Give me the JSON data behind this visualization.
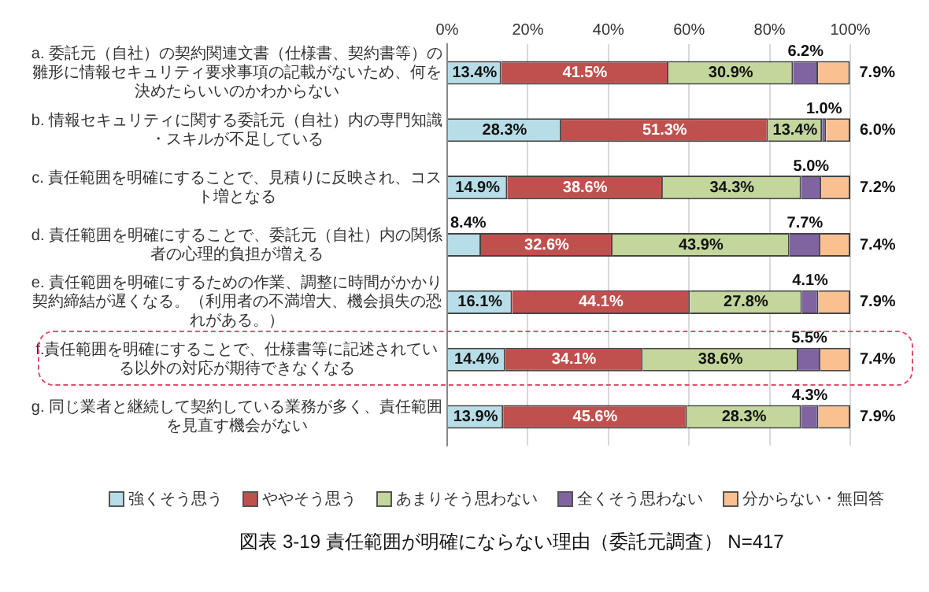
{
  "chart_data": {
    "type": "bar",
    "orientation": "horizontal",
    "stacked": true,
    "title": "図表 3-19 責任範囲が明確にならない理由（委託元調査） N=417",
    "categories": [
      "a. 委託元（自社）の契約関連文書（仕様書、契約書等）の雛形に情報セキュリティ要求事項の記載がないため、何を決めたらいいのかわからない",
      "b. 情報セキュリティに関する委託元（自社）内の専門知識・スキルが不足している",
      "c. 責任範囲を明確にすることで、見積りに反映され、コスト増となる",
      "d. 責任範囲を明確にすることで、委託元（自社）内の関係者の心理的負担が増える",
      "e. 責任範囲を明確にするための作業、調整に時間がかかり契約締結が遅くなる。（利用者の不満増大、機会損失の恐れがある。）",
      "f.責任範囲を明確にすることで、仕様書等に記述されている以外の対応が期待できなくなる",
      "g. 同じ業者と継続して契約している業務が多く、責任範囲を見直す機会がない"
    ],
    "series": [
      {
        "name": "強くそう思う",
        "color": "#b7dee8",
        "values": [
          13.4,
          28.3,
          14.9,
          8.4,
          16.1,
          14.4,
          13.9
        ],
        "value_labels": [
          "13.4%",
          "28.3%",
          "14.9%",
          "8.4%",
          "16.1%",
          "14.4%",
          "13.9%"
        ]
      },
      {
        "name": "ややそう思う",
        "color": "#c0504d",
        "values": [
          41.5,
          51.3,
          38.6,
          32.6,
          44.1,
          34.1,
          45.6
        ],
        "value_labels": [
          "41.5%",
          "51.3%",
          "38.6%",
          "32.6%",
          "44.1%",
          "34.1%",
          "45.6%"
        ]
      },
      {
        "name": "あまりそう思わない",
        "color": "#c3d69b",
        "values": [
          30.9,
          13.4,
          34.3,
          43.9,
          27.8,
          38.6,
          28.3
        ],
        "value_labels": [
          "30.9%",
          "13.4%",
          "34.3%",
          "43.9%",
          "27.8%",
          "38.6%",
          "28.3%"
        ]
      },
      {
        "name": "全くそう思わない",
        "color": "#8064a2",
        "values": [
          6.2,
          1.0,
          5.0,
          7.7,
          4.1,
          5.5,
          4.3
        ],
        "value_labels": [
          "6.2%",
          "1.0%",
          "5.0%",
          "7.7%",
          "4.1%",
          "5.5%",
          "4.3%"
        ]
      },
      {
        "name": "分からない・無回答",
        "color": "#fac090",
        "values": [
          7.9,
          6.0,
          7.2,
          7.4,
          7.9,
          7.4,
          7.9
        ],
        "value_labels": [
          "7.9%",
          "6.0%",
          "7.2%",
          "7.4%",
          "7.9%",
          "7.4%",
          "7.9%"
        ]
      }
    ],
    "xlim": [
      0,
      100
    ],
    "xticks": [
      {
        "value": 0,
        "label": "0%"
      },
      {
        "value": 20,
        "label": "20%"
      },
      {
        "value": 40,
        "label": "40%"
      },
      {
        "value": 60,
        "label": "60%"
      },
      {
        "value": 80,
        "label": "80%"
      },
      {
        "value": 100,
        "label": "100%"
      }
    ],
    "grid": "x",
    "legend": "bottom"
  }
}
